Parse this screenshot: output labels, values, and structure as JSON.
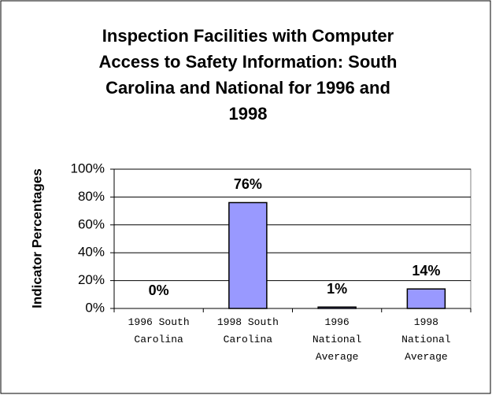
{
  "chart_data": {
    "type": "bar",
    "title": [
      "Inspection Facilities with Computer",
      "Access to Safety Information: South",
      "Carolina and National for 1996 and",
      "1998"
    ],
    "y_label": "Indicator Percentages",
    "categories": [
      "1996 South Carolina",
      "1998 South Carolina",
      "1996 National Average",
      "1998 National Average"
    ],
    "values": [
      0,
      76,
      1,
      14
    ],
    "value_labels": [
      "0%",
      "76%",
      "1%",
      "14%"
    ],
    "color": "#9999ff",
    "ylim": [
      0,
      100
    ],
    "yticks": [
      {
        "value": 0,
        "label": "0%"
      },
      {
        "value": 20,
        "label": "20%"
      },
      {
        "value": 40,
        "label": "40%"
      },
      {
        "value": 60,
        "label": "60%"
      },
      {
        "value": 80,
        "label": "80%"
      },
      {
        "value": 100,
        "label": "100%"
      }
    ],
    "grid": true
  }
}
